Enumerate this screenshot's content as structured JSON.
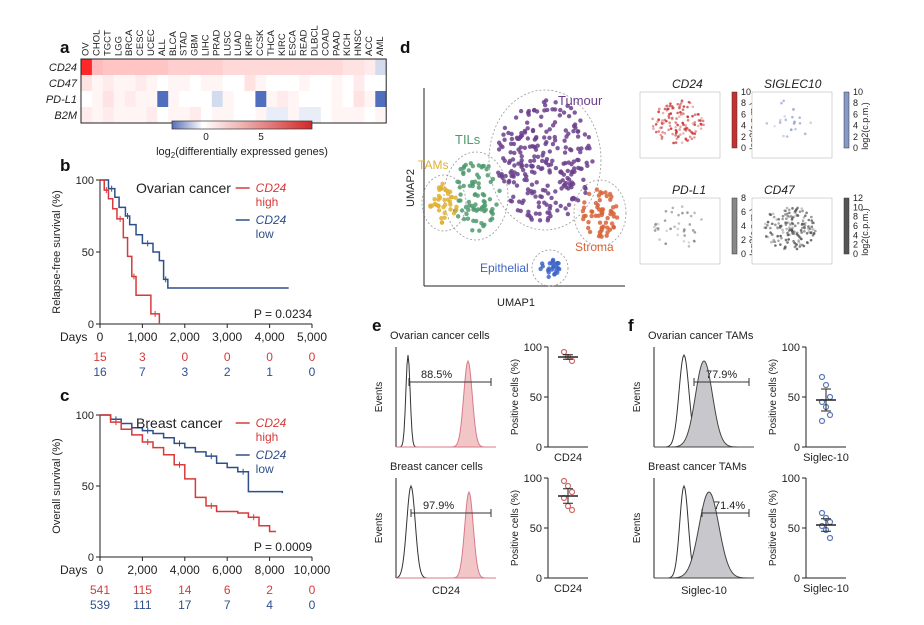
{
  "panels": {
    "a": "a",
    "b": "b",
    "c": "c",
    "d": "d",
    "e": "e",
    "f": "f"
  },
  "colors": {
    "high": "#d63a3a",
    "low": "#2f4f8a",
    "hist_fill": "#f2c6c6",
    "hist_line": "#d9788a",
    "tam_fill": "#c8c8cc",
    "tumour": "#6b3f8c",
    "tils": "#4f9a6e",
    "tams": "#e0b030",
    "stroma": "#d8643a",
    "epithelial": "#3c64c8"
  },
  "heatmap": {
    "cancers": [
      "OV",
      "CHOL",
      "TGCT",
      "LGG",
      "BRCA",
      "CESC",
      "UCEC",
      "ALL",
      "BLCA",
      "STAD",
      "GBM",
      "LIHC",
      "PRAD",
      "LUSC",
      "LUAD",
      "KIRP",
      "CCSK",
      "THCA",
      "KIRC",
      "ESCA",
      "READ",
      "DLBCL",
      "COAD",
      "PAAD",
      "KICH",
      "HNSC",
      "ACC",
      "AML"
    ],
    "genes": [
      "CD24",
      "CD47",
      "PD-L1",
      "B2M"
    ],
    "values": [
      [
        11,
        3.5,
        3,
        3,
        3,
        3,
        3,
        3,
        2.5,
        2.5,
        2.5,
        2.5,
        2.5,
        2,
        2,
        2,
        2,
        2,
        2,
        2,
        2,
        2,
        2,
        2,
        1.5,
        1.5,
        1,
        -1
      ],
      [
        1.5,
        0.5,
        1,
        0.5,
        0.5,
        1,
        0.5,
        0,
        0.5,
        0.5,
        0,
        0.5,
        0.5,
        0,
        0,
        1.5,
        0.5,
        0,
        0,
        0,
        0.5,
        0,
        0,
        0.5,
        0,
        1,
        0,
        0
      ],
      [
        0,
        0.5,
        1.5,
        0.5,
        1,
        0.5,
        0.5,
        -4,
        0.5,
        0,
        0,
        0,
        -1,
        0.5,
        0,
        0,
        -4,
        0.5,
        1,
        0.5,
        0,
        0,
        0,
        0.5,
        0,
        1.5,
        0.5,
        -4
      ],
      [
        1,
        0.5,
        1,
        0.5,
        0.5,
        0.5,
        1,
        0,
        0.5,
        0.5,
        1,
        0,
        0.5,
        0.5,
        0,
        0,
        0.5,
        -0.5,
        -0.5,
        0.5,
        -0.5,
        -0.5,
        0,
        0.5,
        0.5,
        0.5,
        0,
        0.5
      ]
    ],
    "colorbar_ticks": [
      "0",
      "5"
    ],
    "colorbar_label": "log2(differentially expressed genes)"
  },
  "survival_b": {
    "title": "Ovarian cancer",
    "ylabel": "Relapse-free survival (%)",
    "xlabel": "Days",
    "xticks": [
      "0",
      "1,000",
      "2,000",
      "3,000",
      "4,000",
      "5,000"
    ],
    "yticks": [
      "0",
      "50",
      "100"
    ],
    "legend_high": [
      "CD24",
      "high"
    ],
    "legend_low": [
      "CD24",
      "low"
    ],
    "p_value": "P = 0.0234",
    "risk_high": [
      "15",
      "3",
      "0",
      "0",
      "0",
      "0"
    ],
    "risk_low": [
      "16",
      "7",
      "3",
      "2",
      "1",
      "0"
    ],
    "high_curve": [
      [
        0,
        100
      ],
      [
        100,
        93
      ],
      [
        200,
        87
      ],
      [
        300,
        80
      ],
      [
        400,
        73
      ],
      [
        550,
        60
      ],
      [
        650,
        47
      ],
      [
        750,
        33
      ],
      [
        850,
        20
      ],
      [
        1000,
        20
      ],
      [
        1200,
        7
      ],
      [
        1400,
        7
      ],
      [
        1400,
        0
      ]
    ],
    "low_curve": [
      [
        0,
        100
      ],
      [
        200,
        94
      ],
      [
        350,
        88
      ],
      [
        450,
        81
      ],
      [
        600,
        75
      ],
      [
        700,
        69
      ],
      [
        850,
        62
      ],
      [
        1000,
        56
      ],
      [
        1250,
        50
      ],
      [
        1400,
        44
      ],
      [
        1500,
        31
      ],
      [
        1600,
        25
      ],
      [
        2000,
        25
      ],
      [
        4450,
        25
      ]
    ]
  },
  "survival_c": {
    "title": "Breast cancer",
    "ylabel": "Overall survival (%)",
    "xlabel": "Days",
    "xticks": [
      "0",
      "2,000",
      "4,000",
      "6,000",
      "8,000",
      "10,000"
    ],
    "yticks": [
      "0",
      "50",
      "100"
    ],
    "legend_high": [
      "CD24",
      "high"
    ],
    "legend_low": [
      "CD24",
      "low"
    ],
    "p_value": "P = 0.0009",
    "risk_high": [
      "541",
      "115",
      "14",
      "6",
      "2",
      "0"
    ],
    "risk_low": [
      "539",
      "111",
      "17",
      "7",
      "4",
      "0"
    ],
    "high_curve": [
      [
        0,
        100
      ],
      [
        500,
        95
      ],
      [
        1000,
        90
      ],
      [
        1500,
        86
      ],
      [
        2000,
        81
      ],
      [
        2500,
        77
      ],
      [
        3000,
        72
      ],
      [
        3500,
        65
      ],
      [
        4000,
        55
      ],
      [
        4500,
        42
      ],
      [
        5000,
        36
      ],
      [
        5500,
        32
      ],
      [
        6500,
        31
      ],
      [
        7000,
        28
      ],
      [
        7500,
        22
      ],
      [
        8000,
        18
      ],
      [
        8300,
        18
      ]
    ],
    "low_curve": [
      [
        0,
        100
      ],
      [
        500,
        97
      ],
      [
        1000,
        94
      ],
      [
        1500,
        91
      ],
      [
        2000,
        89
      ],
      [
        2500,
        87
      ],
      [
        3000,
        84
      ],
      [
        3500,
        80
      ],
      [
        4000,
        77
      ],
      [
        4500,
        74
      ],
      [
        5000,
        71
      ],
      [
        5500,
        66
      ],
      [
        6000,
        63
      ],
      [
        6500,
        60
      ],
      [
        7000,
        46
      ],
      [
        7500,
        46
      ],
      [
        8600,
        45
      ]
    ]
  },
  "umap": {
    "xlabel": "UMAP1",
    "ylabel": "UMAP2",
    "clusters": [
      "Tumour",
      "TILs",
      "TAMs",
      "Stroma",
      "Epithelial"
    ],
    "small": [
      {
        "gene": "CD24",
        "cbar_label": "log2(c.p.m.)",
        "ticks": [
          "0",
          "2",
          "4",
          "6",
          "8",
          "10"
        ]
      },
      {
        "gene": "SIGLEC10",
        "cbar_label": "log2(c.p.m.)",
        "ticks": [
          "0",
          "2",
          "4",
          "6",
          "8",
          "10"
        ]
      },
      {
        "gene": "PD-L1",
        "cbar_label": "log2(c.p.m.)",
        "ticks": [
          "0",
          "2",
          "4",
          "6",
          "8"
        ]
      },
      {
        "gene": "CD47",
        "cbar_label": "log2(c.p.m.)",
        "ticks": [
          "0",
          "2",
          "4",
          "6",
          "8",
          "10",
          "12"
        ]
      }
    ]
  },
  "flow_e": {
    "top_title": "Ovarian cancer cells",
    "bottom_title": "Breast cancer cells",
    "top_pct": "88.5%",
    "bottom_pct": "97.9%",
    "ylabel": "Events",
    "xlabel": "CD24",
    "dot_ylabel": "Positive cells (%)",
    "dot_xlabel": "CD24",
    "yticks": [
      "0",
      "50",
      "100"
    ],
    "top_dots": [
      95,
      90,
      86
    ],
    "top_mean": 90,
    "bottom_dots": [
      97,
      92,
      86,
      80,
      72,
      68
    ],
    "bottom_mean": 82
  },
  "flow_f": {
    "top_title": "Ovarian cancer TAMs",
    "bottom_title": "Breast cancer TAMs",
    "top_pct": "77.9%",
    "bottom_pct": "71.4%",
    "ylabel": "Events",
    "xlabel": "Siglec-10",
    "dot_ylabel": "Positive cells (%)",
    "dot_xlabel": "Siglec-10",
    "yticks": [
      "0",
      "50",
      "100"
    ],
    "top_dots": [
      70,
      62,
      50,
      45,
      40,
      32,
      26
    ],
    "top_mean": 47,
    "bottom_dots": [
      65,
      60,
      56,
      52,
      48,
      40
    ],
    "bottom_mean": 53
  }
}
